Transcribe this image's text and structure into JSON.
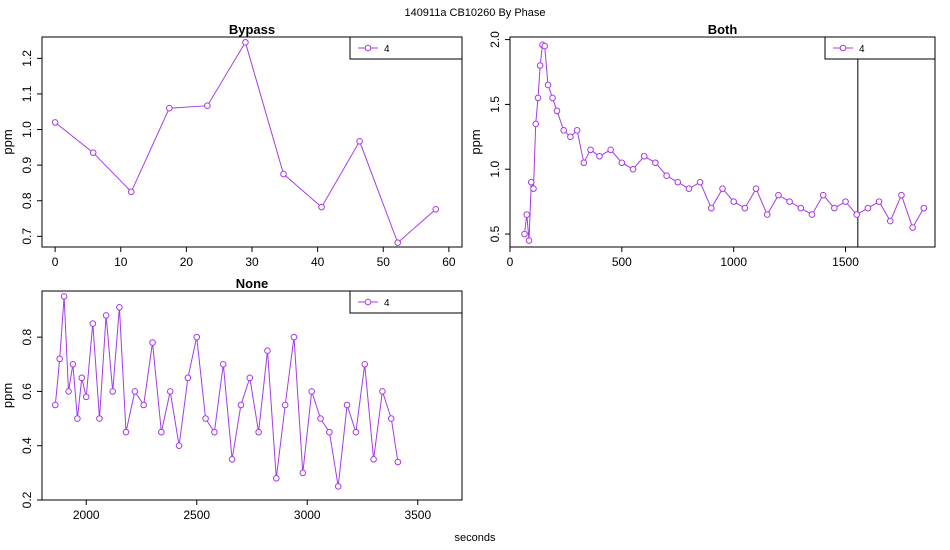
{
  "figure": {
    "title": "140911a    CB10260   By Phase",
    "xlabel": "seconds"
  },
  "colors": {
    "series": "#a63be6",
    "axis": "#000000",
    "background": "#ffffff"
  },
  "chart_data": [
    {
      "type": "line",
      "title": "Bypass",
      "ylabel": "ppm",
      "xlim": [
        -2,
        62
      ],
      "ylim": [
        0.67,
        1.26
      ],
      "xticks": [
        0,
        10,
        20,
        30,
        40,
        50,
        60
      ],
      "xtick_labels": [
        "0",
        "10",
        "20",
        "30",
        "40",
        "50",
        "60"
      ],
      "yticks": [
        0.7,
        0.8,
        0.9,
        1.0,
        1.1,
        1.2
      ],
      "ytick_labels": [
        "0.7",
        "0.8",
        "0.9",
        "1.0",
        "1.1",
        "1.2"
      ],
      "legend": {
        "position": "top-right",
        "label": "4"
      },
      "series": [
        {
          "name": "4",
          "marker": "circle-open",
          "x": [
            0,
            5.8,
            11.6,
            17.4,
            23.2,
            29.0,
            34.8,
            40.6,
            46.4,
            52.2,
            58.0
          ],
          "y": [
            1.02,
            0.935,
            0.825,
            1.06,
            1.067,
            1.245,
            0.875,
            0.782,
            0.967,
            0.682,
            0.776
          ]
        }
      ]
    },
    {
      "type": "line",
      "title": "Both",
      "ylabel": "ppm",
      "xlim": [
        0,
        1900
      ],
      "ylim": [
        0.4,
        2.02
      ],
      "xticks": [
        0,
        500,
        1000,
        1500
      ],
      "xtick_labels": [
        "0",
        "500",
        "1000",
        "1500"
      ],
      "yticks": [
        0.5,
        1.0,
        1.5,
        2.0
      ],
      "ytick_labels": [
        "0.5",
        "1.0",
        "1.5",
        "2.0"
      ],
      "legend": {
        "position": "top-right",
        "label": "4"
      },
      "vline_x": 1555,
      "series": [
        {
          "name": "4",
          "marker": "circle-open",
          "x": [
            65,
            75,
            85,
            95,
            105,
            115,
            125,
            135,
            145,
            155,
            170,
            190,
            210,
            240,
            270,
            300,
            330,
            360,
            400,
            450,
            500,
            550,
            600,
            650,
            700,
            750,
            800,
            850,
            900,
            950,
            1000,
            1050,
            1100,
            1150,
            1200,
            1250,
            1300,
            1350,
            1400,
            1450,
            1500,
            1550,
            1600,
            1650,
            1700,
            1750,
            1800,
            1850
          ],
          "y": [
            0.5,
            0.65,
            0.45,
            0.9,
            0.85,
            1.35,
            1.55,
            1.8,
            1.96,
            1.95,
            1.65,
            1.55,
            1.45,
            1.3,
            1.25,
            1.3,
            1.05,
            1.15,
            1.1,
            1.15,
            1.05,
            1.0,
            1.1,
            1.05,
            0.95,
            0.9,
            0.85,
            0.9,
            0.7,
            0.85,
            0.75,
            0.7,
            0.85,
            0.65,
            0.8,
            0.75,
            0.7,
            0.65,
            0.8,
            0.7,
            0.75,
            0.65,
            0.7,
            0.75,
            0.6,
            0.8,
            0.55,
            0.7
          ]
        }
      ]
    },
    {
      "type": "line",
      "title": "None",
      "ylabel": "ppm",
      "xlim": [
        1800,
        3700
      ],
      "ylim": [
        0.2,
        0.97
      ],
      "xticks": [
        2000,
        2500,
        3000,
        3500
      ],
      "xtick_labels": [
        "2000",
        "2500",
        "3000",
        "3500"
      ],
      "yticks": [
        0.2,
        0.4,
        0.6,
        0.8
      ],
      "ytick_labels": [
        "0.2",
        "0.4",
        "0.6",
        "0.8"
      ],
      "legend": {
        "position": "top-right",
        "label": "4"
      },
      "series": [
        {
          "name": "4",
          "marker": "circle-open",
          "x": [
            1860,
            1880,
            1900,
            1920,
            1940,
            1960,
            1980,
            2000,
            2030,
            2060,
            2090,
            2120,
            2150,
            2180,
            2220,
            2260,
            2300,
            2340,
            2380,
            2420,
            2460,
            2500,
            2540,
            2580,
            2620,
            2660,
            2700,
            2740,
            2780,
            2820,
            2860,
            2900,
            2940,
            2980,
            3020,
            3060,
            3100,
            3140,
            3180,
            3220,
            3260,
            3300,
            3340,
            3380,
            3410
          ],
          "y": [
            0.55,
            0.72,
            0.95,
            0.6,
            0.7,
            0.5,
            0.65,
            0.58,
            0.85,
            0.5,
            0.88,
            0.6,
            0.91,
            0.45,
            0.6,
            0.55,
            0.78,
            0.45,
            0.6,
            0.4,
            0.65,
            0.8,
            0.5,
            0.45,
            0.7,
            0.35,
            0.55,
            0.65,
            0.45,
            0.75,
            0.28,
            0.55,
            0.8,
            0.3,
            0.6,
            0.5,
            0.45,
            0.25,
            0.55,
            0.45,
            0.7,
            0.35,
            0.6,
            0.5,
            0.34
          ]
        }
      ]
    }
  ]
}
